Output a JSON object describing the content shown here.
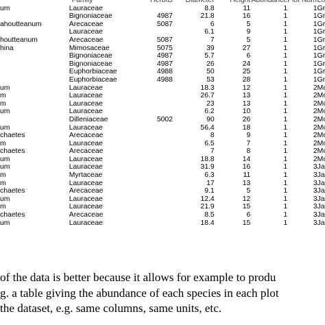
{
  "table": {
    "headers": [
      "",
      "Family",
      "HerbID",
      "Diameter",
      "Height",
      "Abundance",
      "Plot Num.",
      "Loca"
    ],
    "rows": [
      [
        "um",
        "Lauraceae",
        "",
        "8.8",
        "11",
        "1",
        "1",
        "Grande"
      ],
      [
        "",
        "Bignoniaceae",
        "4987",
        "21.8",
        "16",
        "1",
        "1",
        "Grande"
      ],
      [
        "ahoutteanum",
        "Arecaceae",
        "5087",
        "6",
        "5",
        "1",
        "1",
        "Grande"
      ],
      [
        "",
        "Lauraceae",
        "",
        "6.1",
        "9",
        "1",
        "1",
        "Grande"
      ],
      [
        "houtteanum",
        "Arecaceae",
        "5087",
        "7",
        "5",
        "1",
        "1",
        "Grande"
      ],
      [
        "hina",
        "Mimosaceae",
        "5075",
        "39",
        "27",
        "1",
        "1",
        "Grande"
      ],
      [
        "",
        "Bignoniaceae",
        "4987",
        "5.7",
        "6",
        "1",
        "1",
        "Grande"
      ],
      [
        "",
        "Bignoniaceae",
        "4987",
        "26",
        "24",
        "1",
        "1",
        "Grande"
      ],
      [
        "",
        "Euphorbiaceae",
        "4988",
        "50",
        "25",
        "1",
        "1",
        "Grande"
      ],
      [
        "",
        "Euphorbiaceae",
        "4988",
        "53",
        "28",
        "1",
        "1",
        "Grande"
      ],
      [
        "um",
        "Lauraceae",
        "",
        "18.3",
        "12",
        "1",
        "2",
        "Mont F"
      ],
      [
        "m",
        "Lauraceae",
        "",
        "26.7",
        "13",
        "1",
        "2",
        "Mont F"
      ],
      [
        "m",
        "Lauraceae",
        "",
        "23",
        "13",
        "1",
        "2",
        "Mont F"
      ],
      [
        "um",
        "Lauraceae",
        "",
        "6.2",
        "10",
        "1",
        "2",
        "Mont F"
      ],
      [
        "",
        "Dilleniaceae",
        "5002",
        "90",
        "26",
        "1",
        "2",
        "Mont F"
      ],
      [
        "um",
        "Lauraceae",
        "",
        "56.4",
        "18",
        "1",
        "2",
        "Mont F"
      ],
      [
        "chaetes",
        "Arecaceae",
        "",
        "8",
        "9",
        "1",
        "2",
        "Mont F"
      ],
      [
        "m",
        "Lauraceae",
        "",
        "6.5",
        "7",
        "1",
        "2",
        "Mont F"
      ],
      [
        "chaetes",
        "Arecaceae",
        "",
        "7",
        "8",
        "1",
        "2",
        "Mont F"
      ],
      [
        "um",
        "Lauraceae",
        "",
        "18.8",
        "14",
        "1",
        "2",
        "Mont F"
      ],
      [
        "um",
        "Lauraceae",
        "",
        "31.9",
        "16",
        "1",
        "3",
        "Jardin M"
      ],
      [
        "m",
        "Myrtaceae",
        "",
        "6.3",
        "11",
        "1",
        "3",
        "Jardin M"
      ],
      [
        "m",
        "Lauraceae",
        "",
        "17",
        "13",
        "1",
        "3",
        "Jardin M"
      ],
      [
        "chaetes",
        "Arecaceae",
        "",
        "9.1",
        "5",
        "1",
        "3",
        "Jardin M"
      ],
      [
        "um",
        "Lauraceae",
        "",
        "12.4",
        "12",
        "1",
        "3",
        "Jardin M"
      ],
      [
        "m",
        "Lauraceae",
        "",
        "21.9",
        "15",
        "1",
        "3",
        "Jardin M"
      ],
      [
        "chaetes",
        "Arecaceae",
        "",
        "8.5",
        "6",
        "1",
        "3",
        "Jardin M"
      ],
      [
        "um",
        "Lauraceae",
        "",
        "18.4",
        "15",
        "1",
        "3",
        "Jardin M"
      ]
    ]
  },
  "caption": {
    "lines": [
      "of the data is better because it allows for example to produ",
      "g. a table giving the abundance of each species in each plot",
      "the dataset, e.g. same columns, same units, etc."
    ]
  }
}
